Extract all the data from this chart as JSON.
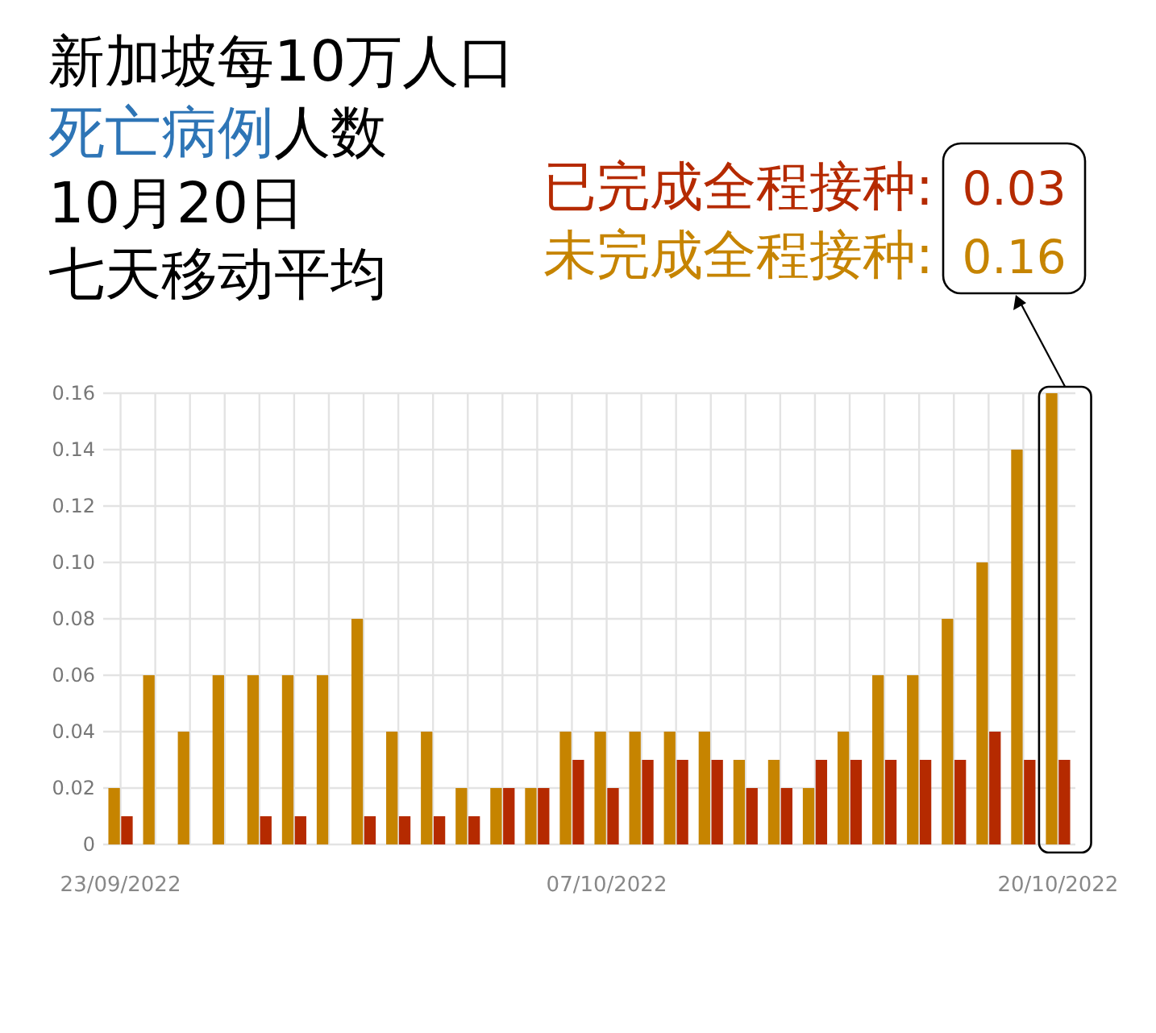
{
  "chart_data": {
    "type": "bar",
    "title": "新加坡每10万人口死亡病例人数",
    "subtitle": "10月20日",
    "categories": [
      "23/09/2022",
      null,
      null,
      null,
      null,
      null,
      null,
      null,
      null,
      null,
      null,
      null,
      null,
      null,
      "07/10/2022",
      null,
      null,
      null,
      null,
      null,
      null,
      null,
      null,
      null,
      null,
      null,
      null,
      "20/10/2022"
    ],
    "series": [
      {
        "name": "未完成全程接种:",
        "color": "#c68400",
        "values": [
          0.02,
          0.06,
          0.04,
          0.06,
          0.06,
          0.06,
          0.06,
          0.08,
          0.04,
          0.04,
          0.02,
          0.02,
          0.02,
          0.04,
          0.04,
          0.04,
          0.04,
          0.04,
          0.03,
          0.03,
          0.02,
          0.04,
          0.06,
          0.06,
          0.08,
          0.1,
          0.14,
          0.16
        ]
      },
      {
        "name": "已完成全程接种:",
        "color": "#b52a00",
        "values": [
          0.01,
          0,
          0,
          0,
          0.01,
          0.01,
          0,
          0.01,
          0.01,
          0.01,
          0.01,
          0.02,
          0.02,
          0.03,
          0.02,
          0.03,
          0.03,
          0.03,
          0.02,
          0.02,
          0.03,
          0.03,
          0.03,
          0.03,
          0.03,
          0.04,
          0.03,
          0.03
        ]
      }
    ],
    "ylim": [
      0,
      0.16
    ],
    "yticks": [
      0,
      0.02,
      0.04,
      0.06,
      0.08,
      {
        "value": 0.1,
        "label": "0.10"
      },
      0.12,
      0.14,
      0.16
    ],
    "grid": true,
    "legend": "top right",
    "annotations": [
      "七天移动平均",
      "0.03",
      "0.16"
    ]
  }
}
